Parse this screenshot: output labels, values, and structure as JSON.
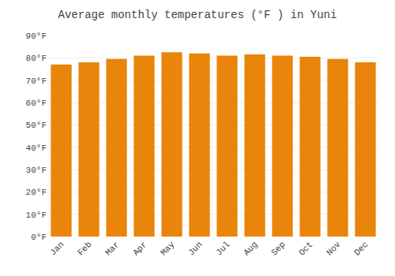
{
  "chart_data": {
    "type": "bar",
    "title": "Average monthly temperatures (°F ) in Yuni",
    "categories": [
      "Jan",
      "Feb",
      "Mar",
      "Apr",
      "May",
      "Jun",
      "Jul",
      "Aug",
      "Sep",
      "Oct",
      "Nov",
      "Dec"
    ],
    "values": [
      77,
      78,
      79.5,
      81,
      82.5,
      82,
      81,
      81.5,
      81,
      80.5,
      79.5,
      78
    ],
    "color": "#E8850A",
    "ylim": [
      0,
      90
    ],
    "yticks": [
      {
        "value": 0,
        "label": "0°F"
      },
      {
        "value": 10,
        "label": "10°F"
      },
      {
        "value": 20,
        "label": "20°F"
      },
      {
        "value": 30,
        "label": "30°F"
      },
      {
        "value": 40,
        "label": "40°F"
      },
      {
        "value": 50,
        "label": "50°F"
      },
      {
        "value": 60,
        "label": "60°F"
      },
      {
        "value": 70,
        "label": "70°F"
      },
      {
        "value": 80,
        "label": "80°F"
      },
      {
        "value": 90,
        "label": "90°F"
      }
    ],
    "grid": true
  }
}
